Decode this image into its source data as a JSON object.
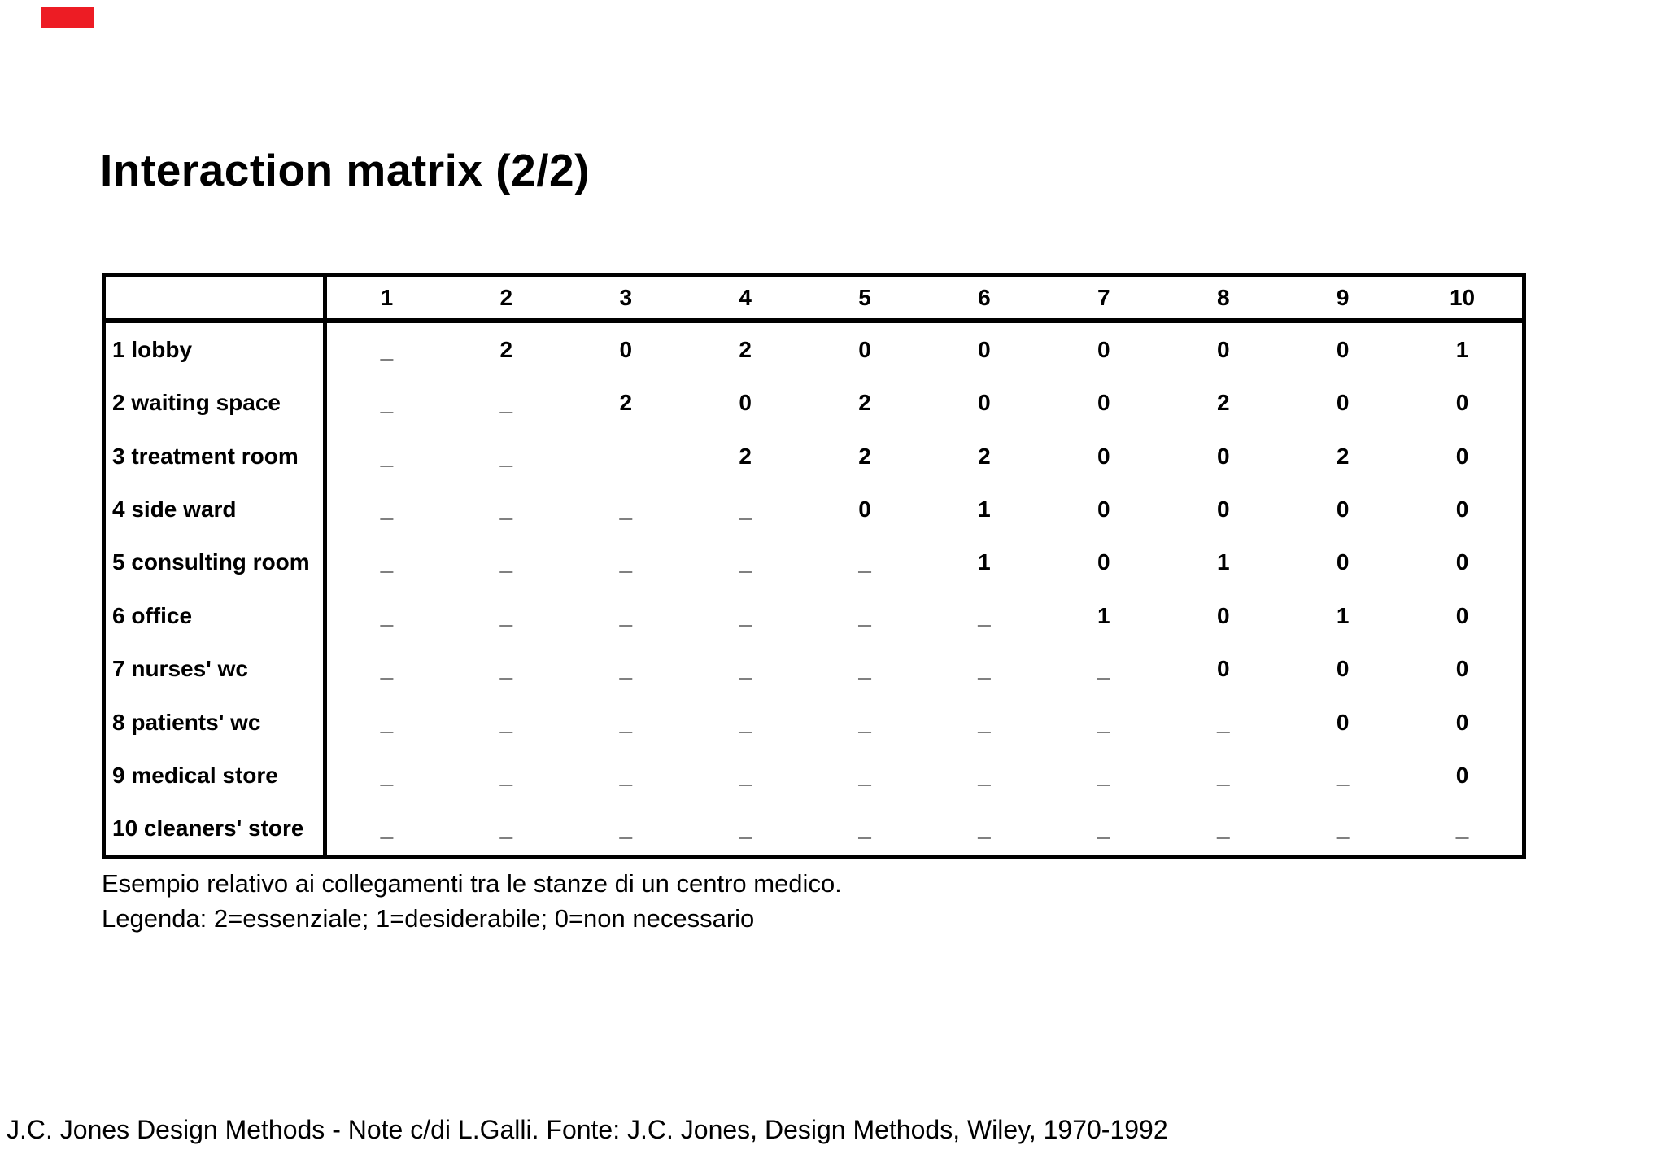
{
  "slide": {
    "title": "Interaction matrix (2/2)",
    "caption_line1": "Esempio relativo ai collegamenti tra le stanze di un centro medico.",
    "caption_line2": "Legenda: 2=essenziale; 1=desiderabile; 0=non necessario",
    "footer": "J.C. Jones Design Methods - Note c/di L.Galli. Fonte: J.C. Jones, Design Methods, Wiley, 1970-1992"
  },
  "colors": {
    "red_mark": "#ed1c24",
    "text": "#000000",
    "background": "#ffffff"
  },
  "matrix": {
    "corner_label": "",
    "column_headers": [
      "1",
      "2",
      "3",
      "4",
      "5",
      "6",
      "7",
      "8",
      "9",
      "10"
    ],
    "rows": [
      {
        "label": "1 lobby",
        "cells": [
          "_",
          "2",
          "0",
          "2",
          "0",
          "0",
          "0",
          "0",
          "0",
          "1"
        ]
      },
      {
        "label": "2 waiting space",
        "cells": [
          "_",
          "_",
          "2",
          "0",
          "2",
          "0",
          "0",
          "2",
          "0",
          "0"
        ]
      },
      {
        "label": "3 treatment room",
        "cells": [
          "_",
          "_",
          "",
          "2",
          "2",
          "2",
          "0",
          "0",
          "2",
          "0"
        ]
      },
      {
        "label": "4 side ward",
        "cells": [
          "_",
          "_",
          "_",
          "_",
          "0",
          "1",
          "0",
          "0",
          "0",
          "0"
        ]
      },
      {
        "label": "5 consulting room",
        "cells": [
          "_",
          "_",
          "_",
          "_",
          "_",
          "1",
          "0",
          "1",
          "0",
          "0"
        ]
      },
      {
        "label": "6 office",
        "cells": [
          "_",
          "_",
          "_",
          "_",
          "_",
          "_",
          "1",
          "0",
          "1",
          "0"
        ]
      },
      {
        "label": "7 nurses' wc",
        "cells": [
          "_",
          "_",
          "_",
          "_",
          "_",
          "_",
          "_",
          "0",
          "0",
          "0"
        ]
      },
      {
        "label": "8 patients' wc",
        "cells": [
          "_",
          "_",
          "_",
          "_",
          "_",
          "_",
          "_",
          "_",
          "0",
          "0"
        ]
      },
      {
        "label": "9 medical store",
        "cells": [
          "_",
          "_",
          "_",
          "_",
          "_",
          "_",
          "_",
          "_",
          "_",
          "0"
        ]
      },
      {
        "label": "10 cleaners' store",
        "cells": [
          "_",
          "_",
          "_",
          "_",
          "_",
          "_",
          "_",
          "_",
          "_",
          "_"
        ]
      }
    ]
  }
}
